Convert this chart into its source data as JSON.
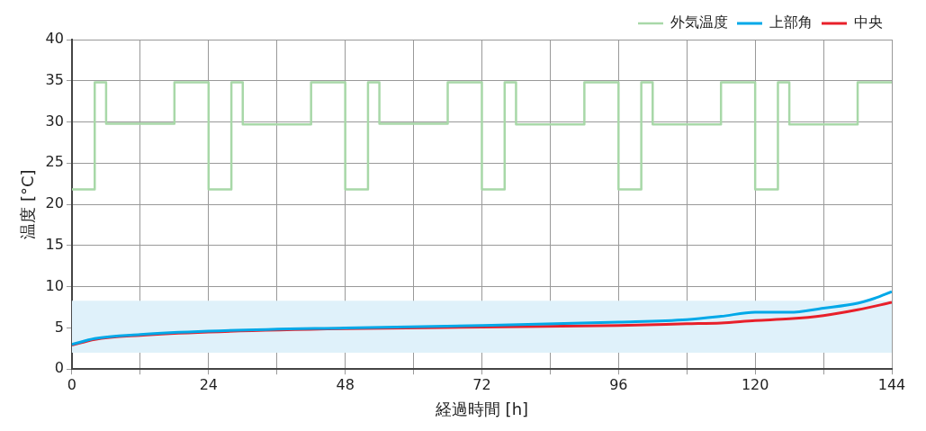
{
  "chart_data": {
    "type": "line",
    "xlabel": "経過時間 [h]",
    "ylabel": "温度 [°C]",
    "xlim": [
      0,
      144
    ],
    "xticks": [
      0,
      {
        "value": 12,
        "label": null
      },
      24,
      {
        "value": 36,
        "label": null
      },
      48,
      {
        "value": 60,
        "label": null
      },
      72,
      {
        "value": 84,
        "label": null
      },
      96,
      {
        "value": 108,
        "label": null
      },
      120,
      {
        "value": 132,
        "label": null
      },
      144
    ],
    "ylim": [
      0,
      40
    ],
    "yticks": [
      0,
      5,
      10,
      15,
      20,
      25,
      30,
      35,
      40
    ],
    "grid": true,
    "legend": "top right",
    "bands": [
      {
        "axis": "y",
        "from": 2,
        "to": 8.3,
        "color": "#dff1fa"
      }
    ],
    "series": [
      {
        "name": "外気温度",
        "type": "step",
        "color": "#a8d8a8",
        "x": [
          0,
          4,
          6,
          18,
          24,
          28,
          30,
          42,
          48,
          52,
          54,
          66,
          72,
          76,
          78,
          90,
          96,
          100,
          102,
          114,
          120,
          124,
          126,
          138,
          144
        ],
        "values": [
          21.8,
          34.8,
          29.8,
          34.8,
          21.8,
          34.8,
          29.7,
          34.8,
          21.8,
          34.8,
          29.8,
          34.8,
          21.8,
          34.8,
          29.7,
          34.8,
          21.8,
          34.8,
          29.7,
          34.8,
          21.8,
          34.8,
          29.7,
          34.8,
          34.8
        ]
      },
      {
        "name": "上部角",
        "color": "#00a8e8",
        "x": [
          0,
          4,
          12,
          24,
          48,
          72,
          96,
          108,
          114,
          120,
          126,
          132,
          138,
          141,
          144
        ],
        "values": [
          3.0,
          3.7,
          4.2,
          4.6,
          5.0,
          5.3,
          5.7,
          6.0,
          6.4,
          6.9,
          6.9,
          7.4,
          8.0,
          8.6,
          9.4
        ]
      },
      {
        "name": "中央",
        "color": "#e8202a",
        "x": [
          0,
          4,
          12,
          24,
          48,
          72,
          96,
          108,
          114,
          120,
          126,
          132,
          138,
          144
        ],
        "values": [
          2.9,
          3.6,
          4.1,
          4.5,
          4.9,
          5.1,
          5.3,
          5.5,
          5.6,
          5.9,
          6.1,
          6.5,
          7.2,
          8.1
        ]
      }
    ]
  }
}
